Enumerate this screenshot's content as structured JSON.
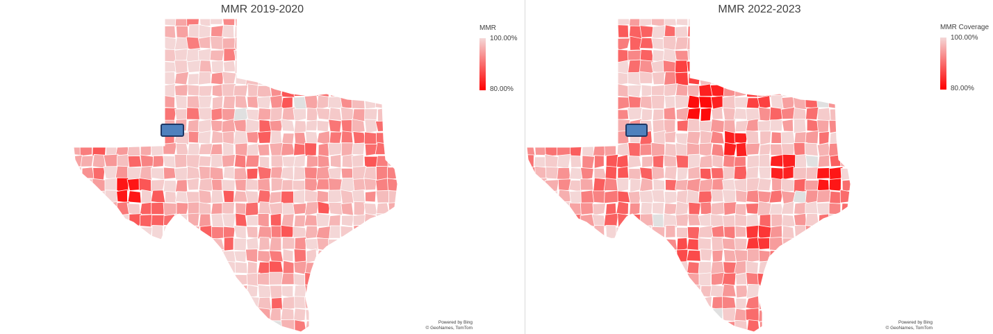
{
  "maps": [
    {
      "title": "MMR 2019-2020",
      "legend": {
        "title": "MMR",
        "max_label": "100.00%",
        "min_label": "80.00%"
      },
      "attribution": {
        "line1": "Powered by Bing",
        "line2": "© GeoNames, TomTom"
      },
      "colors": {
        "high": "#f4d7d7",
        "low": "#ff0000",
        "highlight": "#4f81bd",
        "no_data": "#e0e0e0"
      },
      "highlighted_county": "outlined blue county",
      "intensity_scale": "0 = 100.00%, 1 = 80.00%"
    },
    {
      "title": "MMR 2022-2023",
      "legend": {
        "title": "MMR Coverage",
        "max_label": "100.00%",
        "min_label": "80.00%"
      },
      "attribution": {
        "line1": "Powered by Bing",
        "line2": "© GeoNames, TomTom"
      },
      "colors": {
        "high": "#f4d7d7",
        "low": "#ff0000",
        "highlight": "#4f81bd",
        "no_data": "#e0e0e0"
      },
      "highlighted_county": "outlined blue county",
      "intensity_scale": "0 = 100.00%, 1 = 80.00%"
    }
  ]
}
